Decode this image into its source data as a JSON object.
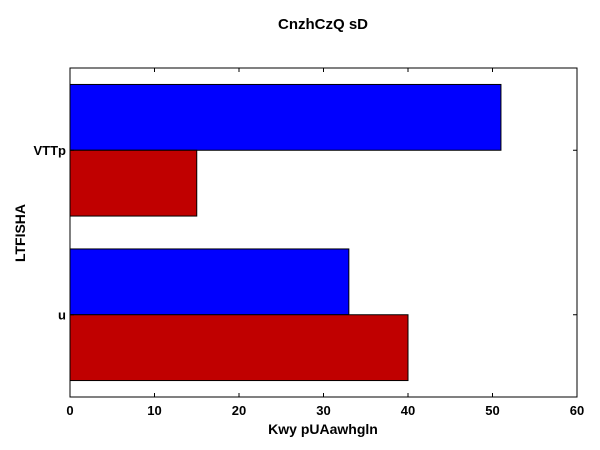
{
  "chart_data": {
    "type": "bar",
    "orientation": "horizontal",
    "title": "CnzhCzQ sD",
    "xlabel": "Kwy pUAawhgln",
    "ylabel": "LTFISHA",
    "categories": [
      "VTTp",
      "u"
    ],
    "series": [
      {
        "color": "#0000ff",
        "values": [
          51,
          33
        ]
      },
      {
        "color": "#c00000",
        "values": [
          15,
          40
        ]
      }
    ],
    "xlim": [
      0,
      60
    ],
    "xticks": [
      0,
      10,
      20,
      30,
      40,
      50,
      60
    ],
    "grid": false,
    "legend": false
  }
}
